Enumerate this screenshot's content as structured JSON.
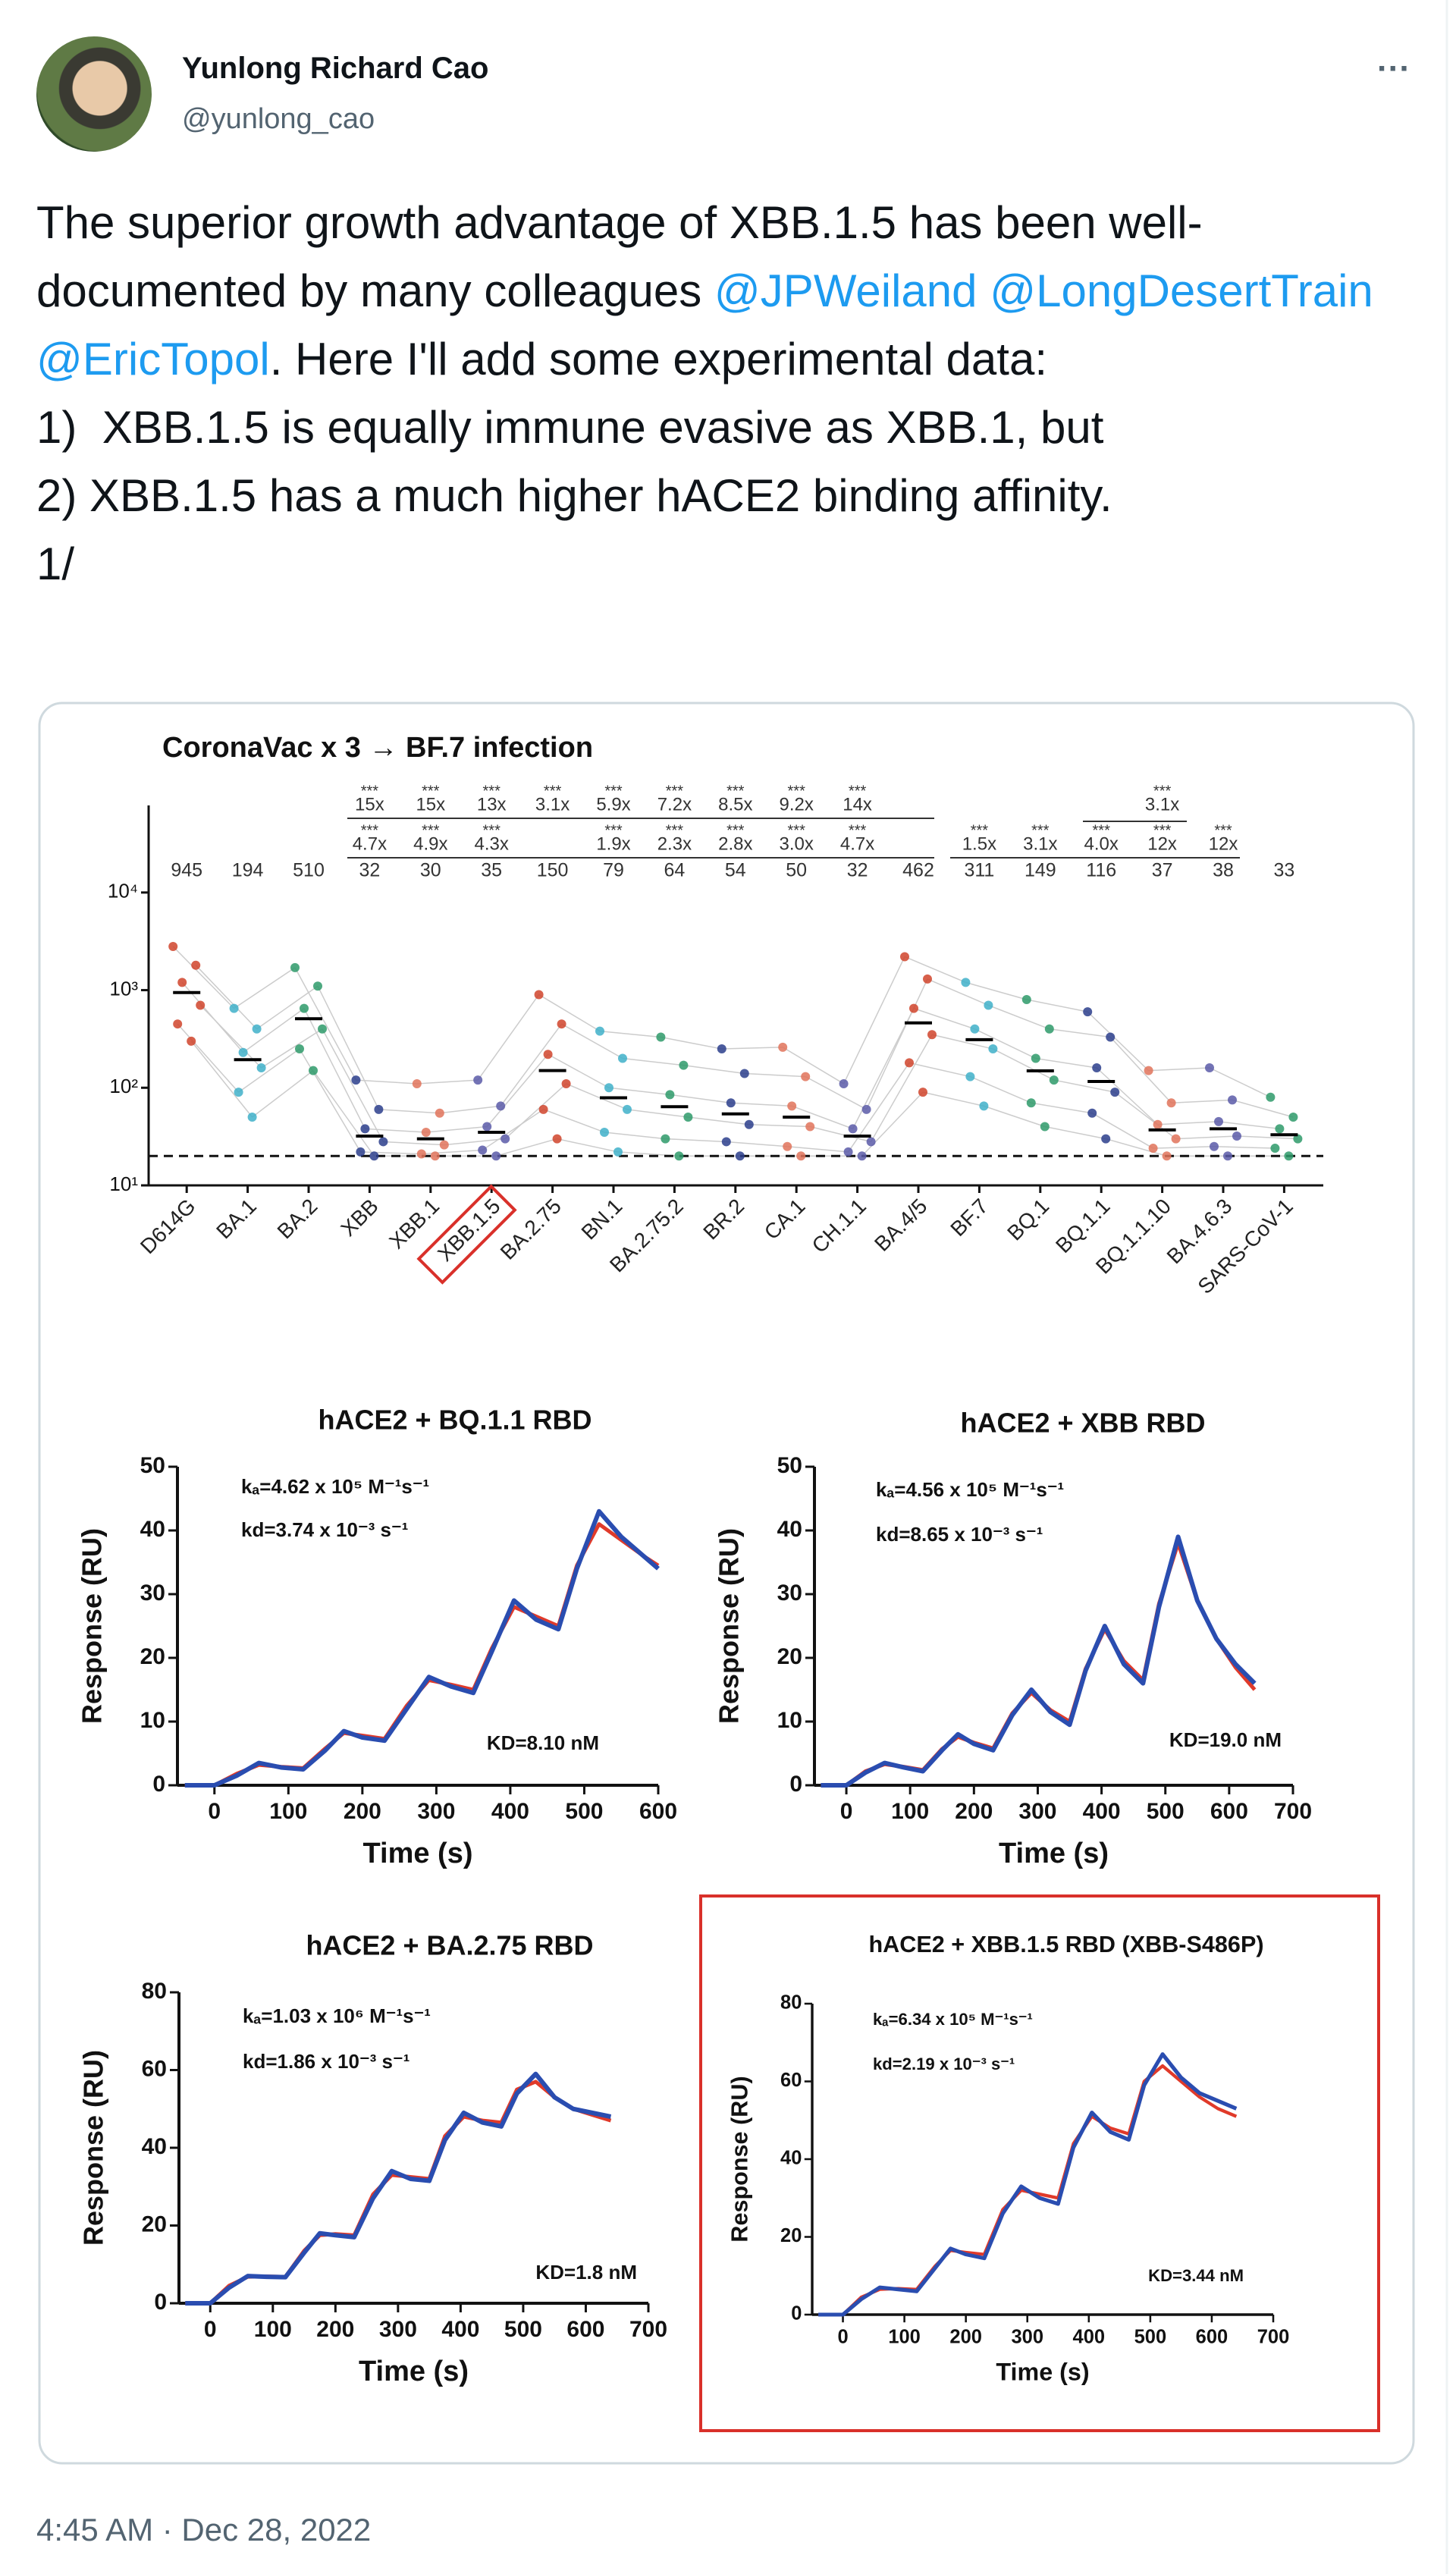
{
  "author": {
    "name": "Yunlong Richard Cao",
    "handle": "@yunlong_cao"
  },
  "more": "···",
  "tweet": [
    {
      "text": "The superior growth advantage of XBB.1.5 has been well-documented by many colleagues "
    },
    {
      "text": "@JPWeiland",
      "link": true
    },
    {
      "text": " "
    },
    {
      "text": "@LongDesertTrain",
      "link": true
    },
    {
      "text": " "
    },
    {
      "text": "@EricTopol",
      "link": true
    },
    {
      "text": ". Here I'll add some experimental data:\n1)  XBB.1.5 is equally immune evasive as XBB.1, but\n2) XBB.1.5 has a much higher hACE2 binding affinity.\n1/"
    }
  ],
  "timestamp": "4:45 AM · Dec 28, 2022",
  "chart_data": [
    {
      "type": "scatter",
      "title": "CoronaVac x 3 → BF.7 infection",
      "log_y": true,
      "categories": [
        "D614G",
        "BA.1",
        "BA.2",
        "XBB",
        "XBB.1",
        "XBB.1.5",
        "BA.2.75",
        "BN.1",
        "BA.2.75.2",
        "BR.2",
        "CA.1",
        "CH.1.1",
        "BA.4/5",
        "BF.7",
        "BQ.1",
        "BQ.1.1",
        "BQ.1.1.10",
        "BA.4.6.3",
        "SARS-CoV-1"
      ],
      "values": [
        945,
        194,
        510,
        32,
        30,
        35,
        150,
        79,
        64,
        54,
        50,
        32,
        462,
        311,
        149,
        116,
        37,
        38,
        33
      ],
      "colors": [
        "#d0442c",
        "#3fb0c9",
        "#2e9a6a",
        "#2c3e8c",
        "#e0735a",
        "#5a5aa8",
        "#d0442c",
        "#3fb0c9",
        "#2e9a6a",
        "#2c3e8c",
        "#e0735a",
        "#5a5aa8",
        "#d0442c",
        "#3fb0c9",
        "#2e9a6a",
        "#2c3e8c",
        "#e0735a",
        "#5a5aa8",
        "#2e9a6a"
      ],
      "points": [
        [
          2800,
          1800,
          1200,
          700,
          450,
          300
        ],
        [
          650,
          400,
          230,
          160,
          90,
          50
        ],
        [
          1700,
          1100,
          650,
          400,
          250,
          150
        ],
        [
          120,
          60,
          38,
          28,
          22,
          20
        ],
        [
          110,
          55,
          35,
          26,
          21,
          20
        ],
        [
          120,
          65,
          40,
          30,
          23,
          20
        ],
        [
          900,
          450,
          220,
          110,
          60,
          30
        ],
        [
          380,
          200,
          100,
          60,
          35,
          22
        ],
        [
          330,
          170,
          85,
          50,
          30,
          20
        ],
        [
          250,
          140,
          70,
          42,
          28,
          20
        ],
        [
          260,
          130,
          65,
          40,
          25,
          20
        ],
        [
          110,
          60,
          38,
          28,
          22,
          20
        ],
        [
          2200,
          1300,
          650,
          350,
          180,
          90
        ],
        [
          1200,
          700,
          400,
          250,
          130,
          65
        ],
        [
          800,
          400,
          200,
          120,
          70,
          40
        ],
        [
          600,
          330,
          160,
          90,
          55,
          30
        ],
        [
          150,
          70,
          42,
          30,
          24,
          20
        ],
        [
          160,
          75,
          45,
          32,
          25,
          20
        ],
        [
          80,
          50,
          38,
          30,
          24,
          20
        ]
      ],
      "fold_row1": [
        null,
        null,
        null,
        "15x",
        "15x",
        "13x",
        "3.1x",
        "5.9x",
        "7.2x",
        "8.5x",
        "9.2x",
        "14x",
        null,
        null,
        null,
        null,
        "3.1x",
        null,
        null
      ],
      "sig_row1": [
        null,
        null,
        null,
        "***",
        "***",
        "***",
        "***",
        "***",
        "***",
        "***",
        "***",
        "***",
        null,
        null,
        null,
        null,
        "***",
        null,
        null
      ],
      "fold_row2": [
        null,
        null,
        null,
        "4.7x",
        "4.9x",
        "4.3x",
        null,
        "1.9x",
        "2.3x",
        "2.8x",
        "3.0x",
        "4.7x",
        null,
        "1.5x",
        "3.1x",
        "4.0x",
        "12x",
        "12x",
        null
      ],
      "sig_row2": [
        null,
        null,
        null,
        "***",
        "***",
        "***",
        null,
        "***",
        "***",
        "***",
        "***",
        "***",
        null,
        "***",
        "***",
        "***",
        "***",
        "***",
        null
      ],
      "threshold": 20,
      "ylim": [
        10,
        78000
      ],
      "yticks": [
        {
          "value": 10,
          "label": "10¹"
        },
        {
          "value": 100,
          "label": "10²"
        },
        {
          "value": 1000,
          "label": "10³"
        },
        {
          "value": 10000,
          "label": "10⁴"
        }
      ]
    },
    {
      "type": "line",
      "title": "hACE2 + BQ.1.1 RBD",
      "xlabel": "Time (s)",
      "ylabel": "Response (RU)",
      "annotations": [
        "kₐ=4.62 x 10⁵ M⁻¹s⁻¹",
        "kd=3.74 x 10⁻³ s⁻¹",
        "KD=8.10 nM"
      ],
      "xlim": [
        -50,
        600
      ],
      "xticks": [
        0,
        100,
        200,
        300,
        400,
        500,
        600
      ],
      "ylim": [
        0,
        50
      ],
      "yticks": [
        0,
        10,
        20,
        30,
        40,
        50
      ],
      "x": [
        -40,
        0,
        30,
        60,
        90,
        120,
        150,
        175,
        200,
        230,
        260,
        290,
        320,
        350,
        375,
        405,
        435,
        465,
        490,
        520,
        550,
        580,
        600
      ],
      "series": [
        {
          "color": "#e03a2a",
          "values": [
            0,
            0,
            1.8,
            3.2,
            2.9,
            2.7,
            5.8,
            8.2,
            7.8,
            7.3,
            12.5,
            16.5,
            15.8,
            15,
            21.5,
            28,
            26.5,
            25,
            34.5,
            41,
            38.5,
            36,
            34.5
          ]
        },
        {
          "color": "#2a4db0",
          "values": [
            0,
            0,
            1.5,
            3.5,
            2.8,
            2.5,
            5.5,
            8.5,
            7.5,
            7,
            12,
            17,
            15.5,
            14.5,
            21,
            29,
            26,
            24.5,
            34,
            43,
            39,
            36,
            34
          ]
        }
      ]
    },
    {
      "type": "line",
      "title": "hACE2 + XBB RBD",
      "xlabel": "Time (s)",
      "ylabel": "Response (RU)",
      "annotations": [
        "kₐ=4.56 x 10⁵ M⁻¹s⁻¹",
        "kd=8.65 x 10⁻³ s⁻¹",
        "KD=19.0 nM"
      ],
      "xlim": [
        -50,
        700
      ],
      "xticks": [
        0,
        100,
        200,
        300,
        400,
        500,
        600,
        700
      ],
      "ylim": [
        0,
        50
      ],
      "yticks": [
        0,
        10,
        20,
        30,
        40,
        50
      ],
      "x": [
        -40,
        0,
        30,
        60,
        90,
        120,
        150,
        175,
        200,
        230,
        260,
        290,
        320,
        350,
        375,
        405,
        435,
        465,
        490,
        520,
        550,
        580,
        610,
        640
      ],
      "series": [
        {
          "color": "#e03a2a",
          "values": [
            0,
            0,
            2.2,
            3.3,
            2.9,
            2.4,
            5.7,
            7.6,
            6.7,
            5.8,
            11.3,
            14.5,
            11.8,
            10,
            18.3,
            24.5,
            19.5,
            16.5,
            28.5,
            38,
            29,
            23,
            18.5,
            15
          ]
        },
        {
          "color": "#2a4db0",
          "values": [
            0,
            0,
            2,
            3.5,
            2.8,
            2.2,
            5.5,
            8,
            6.5,
            5.5,
            11,
            15,
            11.5,
            9.5,
            18,
            25,
            19,
            16,
            28,
            39,
            29,
            23,
            19,
            16
          ]
        }
      ]
    },
    {
      "type": "line",
      "title": "hACE2 + BA.2.75 RBD",
      "xlabel": "Time (s)",
      "ylabel": "Response (RU)",
      "annotations": [
        "kₐ=1.03 x 10⁶ M⁻¹s⁻¹",
        "kd=1.86 x 10⁻³ s⁻¹",
        "KD=1.8 nM"
      ],
      "xlim": [
        -50,
        700
      ],
      "xticks": [
        0,
        100,
        200,
        300,
        400,
        500,
        600,
        700
      ],
      "ylim": [
        0,
        80
      ],
      "yticks": [
        0,
        20,
        40,
        60,
        80
      ],
      "x": [
        -40,
        0,
        30,
        60,
        90,
        120,
        150,
        175,
        200,
        230,
        260,
        290,
        320,
        350,
        375,
        405,
        435,
        465,
        490,
        520,
        550,
        580,
        610,
        640
      ],
      "series": [
        {
          "color": "#e03a2a",
          "values": [
            0,
            0,
            4.5,
            6.8,
            6.9,
            6.8,
            13.5,
            17.5,
            17.8,
            17.5,
            28,
            33,
            32.5,
            32,
            43,
            48,
            47,
            46.5,
            55,
            57,
            53,
            50,
            48.5,
            47
          ]
        },
        {
          "color": "#2a4db0",
          "values": [
            0,
            0,
            4,
            7,
            6.8,
            6.7,
            13,
            18,
            17.5,
            17,
            27,
            34,
            32,
            31.5,
            42,
            49,
            46.5,
            45.5,
            54,
            59,
            53,
            50,
            49,
            48
          ]
        }
      ]
    },
    {
      "type": "line",
      "title": "hACE2 + XBB.1.5 RBD (XBB-S486P)",
      "xlabel": "Time (s)",
      "ylabel": "Response (RU)",
      "annotations": [
        "kₐ=6.34 x 10⁵ M⁻¹s⁻¹",
        "kd=2.19 x 10⁻³ s⁻¹",
        "KD=3.44 nM"
      ],
      "xlim": [
        -50,
        700
      ],
      "xticks": [
        0,
        100,
        200,
        300,
        400,
        500,
        600,
        700
      ],
      "ylim": [
        0,
        80
      ],
      "yticks": [
        0,
        20,
        40,
        60,
        80
      ],
      "x": [
        -40,
        0,
        30,
        60,
        90,
        120,
        150,
        175,
        200,
        230,
        260,
        290,
        320,
        350,
        375,
        405,
        435,
        465,
        490,
        520,
        550,
        580,
        610,
        640
      ],
      "series": [
        {
          "color": "#e03a2a",
          "values": [
            0,
            0,
            4.5,
            6.5,
            6.7,
            6.5,
            12.5,
            16.5,
            16,
            15.5,
            27,
            32,
            31,
            30,
            44,
            51,
            48,
            46.5,
            60,
            64,
            60,
            56,
            53,
            51
          ]
        },
        {
          "color": "#2a4db0",
          "values": [
            0,
            0,
            4,
            7,
            6.5,
            6,
            12,
            17,
            15.5,
            14.5,
            26,
            33,
            30,
            28.5,
            43,
            52,
            47,
            45,
            59,
            67,
            61,
            57,
            55,
            53
          ]
        }
      ]
    }
  ]
}
